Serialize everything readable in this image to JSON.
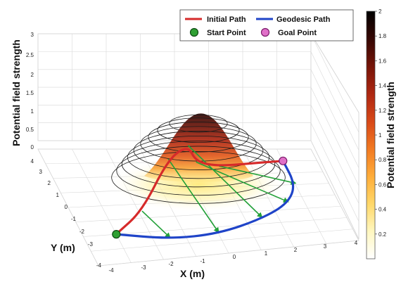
{
  "chart_data": {
    "type": "surface",
    "xlabel": "X (m)",
    "ylabel": "Y (m)",
    "zlabel": "Potential field strength",
    "xlim": [
      -4,
      4
    ],
    "ylim": [
      -4,
      4
    ],
    "zlim": [
      0,
      3
    ],
    "x_ticks": [
      "-4",
      "-3",
      "-2",
      "-1",
      "0",
      "1",
      "2",
      "3",
      "4"
    ],
    "y_ticks": [
      "-4",
      "-3",
      "-2",
      "-1",
      "0",
      "1",
      "2",
      "3",
      "4"
    ],
    "z_ticks": [
      "0",
      "0.5",
      "1",
      "1.5",
      "2",
      "2.5",
      "3"
    ],
    "grid": true,
    "surface": {
      "peak": 2,
      "center": [
        0,
        0
      ],
      "contour_levels": [
        0.2,
        0.4,
        0.6,
        0.8,
        1.0,
        1.2,
        1.4,
        1.6,
        1.8
      ]
    },
    "colorbar": {
      "label": "Potential field strength",
      "ticks": [
        "2",
        "1.8",
        "1.6",
        "1.4",
        "1.2",
        "1",
        "0.8",
        "0.6",
        "0.4",
        "0.2"
      ],
      "range": [
        0,
        2
      ],
      "colors": [
        "#ffffff",
        "#fff7c0",
        "#ffd86a",
        "#ffae3a",
        "#f27b22",
        "#d94a18",
        "#b02812",
        "#7a1508",
        "#3a0804",
        "#000000"
      ]
    },
    "legend": {
      "placement": "top",
      "items": [
        {
          "label": "Initial Path",
          "kind": "line",
          "color": "#d62a2a"
        },
        {
          "label": "Geodesic Path",
          "kind": "line",
          "color": "#1f44c8"
        },
        {
          "label": "Start Point",
          "kind": "marker",
          "color": "#2fa033"
        },
        {
          "label": "Goal Point",
          "kind": "marker",
          "color": "#e070c8"
        }
      ]
    },
    "series": [
      {
        "name": "Initial Path",
        "color": "#d62a2a",
        "points": [
          [
            -3,
            -2
          ],
          [
            -2,
            -1
          ],
          [
            -1,
            0
          ],
          [
            -0.2,
            1
          ],
          [
            0.2,
            1.8
          ],
          [
            1,
            2.4
          ],
          [
            2,
            2.8
          ],
          [
            3,
            3
          ]
        ]
      },
      {
        "name": "Geodesic Path",
        "color": "#1f44c8",
        "points": [
          [
            -3,
            -2
          ],
          [
            -1.5,
            -2.6
          ],
          [
            0,
            -2.5
          ],
          [
            1.5,
            -1.6
          ],
          [
            2.5,
            -0.5
          ],
          [
            3,
            1
          ],
          [
            3,
            3
          ]
        ]
      }
    ],
    "start_point": [
      -3,
      -2
    ],
    "goal_point": [
      3,
      3
    ],
    "arrow_color": "#22a038"
  }
}
